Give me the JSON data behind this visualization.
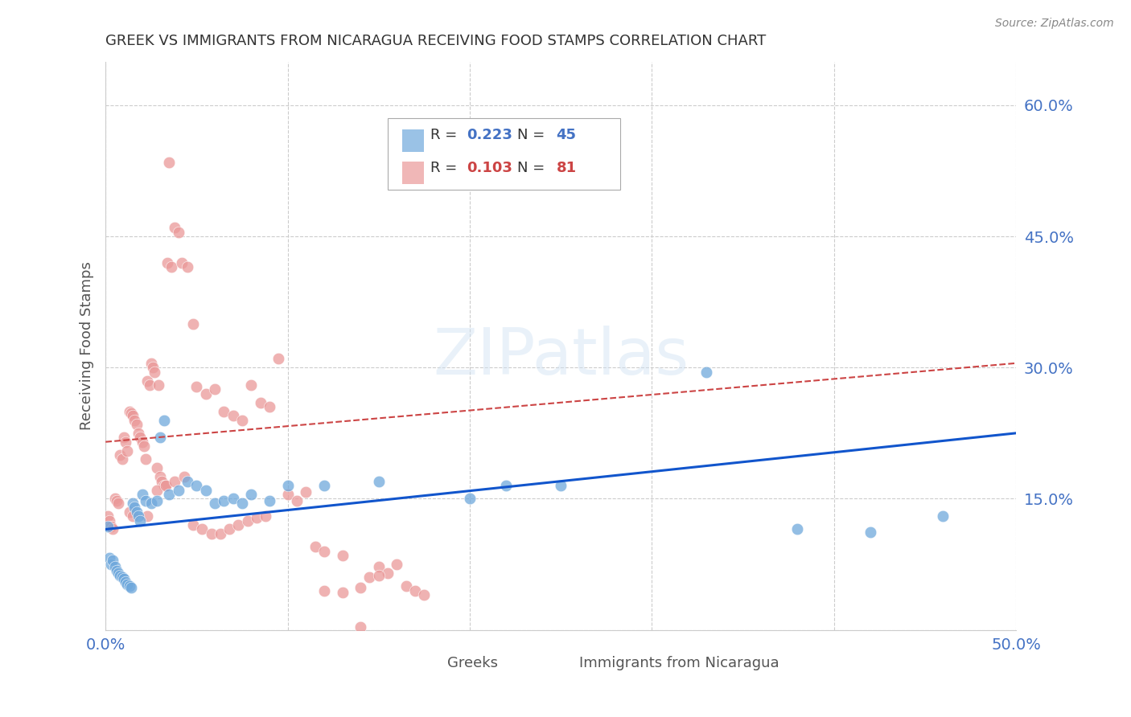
{
  "title": "GREEK VS IMMIGRANTS FROM NICARAGUA RECEIVING FOOD STAMPS CORRELATION CHART",
  "source": "Source: ZipAtlas.com",
  "ylabel": "Receiving Food Stamps",
  "xlim": [
    0.0,
    0.5
  ],
  "ylim": [
    0.0,
    0.65
  ],
  "yticks": [
    0.0,
    0.15,
    0.3,
    0.45,
    0.6
  ],
  "yticklabels": [
    "",
    "15.0%",
    "30.0%",
    "45.0%",
    "60.0%"
  ],
  "grid_color": "#cccccc",
  "background_color": "#ffffff",
  "title_color": "#333333",
  "axis_color": "#4472c4",
  "greek_color": "#6fa8dc",
  "nica_color": "#ea9999",
  "greek_line_color": "#1155cc",
  "nica_line_color": "#cc4444",
  "greek_line": [
    [
      0.0,
      0.115
    ],
    [
      0.5,
      0.225
    ]
  ],
  "nica_line": [
    [
      0.0,
      0.215
    ],
    [
      0.5,
      0.305
    ]
  ],
  "greek_scatter": [
    [
      0.001,
      0.118
    ],
    [
      0.002,
      0.082
    ],
    [
      0.003,
      0.075
    ],
    [
      0.004,
      0.08
    ],
    [
      0.005,
      0.072
    ],
    [
      0.006,
      0.068
    ],
    [
      0.007,
      0.065
    ],
    [
      0.008,
      0.062
    ],
    [
      0.009,
      0.06
    ],
    [
      0.01,
      0.058
    ],
    [
      0.011,
      0.055
    ],
    [
      0.012,
      0.052
    ],
    [
      0.013,
      0.05
    ],
    [
      0.014,
      0.048
    ],
    [
      0.015,
      0.145
    ],
    [
      0.016,
      0.14
    ],
    [
      0.017,
      0.135
    ],
    [
      0.018,
      0.13
    ],
    [
      0.019,
      0.125
    ],
    [
      0.02,
      0.155
    ],
    [
      0.022,
      0.148
    ],
    [
      0.025,
      0.145
    ],
    [
      0.028,
      0.148
    ],
    [
      0.03,
      0.22
    ],
    [
      0.032,
      0.24
    ],
    [
      0.035,
      0.155
    ],
    [
      0.04,
      0.16
    ],
    [
      0.045,
      0.17
    ],
    [
      0.05,
      0.165
    ],
    [
      0.055,
      0.16
    ],
    [
      0.06,
      0.145
    ],
    [
      0.065,
      0.148
    ],
    [
      0.07,
      0.15
    ],
    [
      0.075,
      0.145
    ],
    [
      0.08,
      0.155
    ],
    [
      0.09,
      0.148
    ],
    [
      0.1,
      0.165
    ],
    [
      0.12,
      0.165
    ],
    [
      0.15,
      0.17
    ],
    [
      0.2,
      0.15
    ],
    [
      0.22,
      0.165
    ],
    [
      0.25,
      0.165
    ],
    [
      0.33,
      0.295
    ],
    [
      0.38,
      0.115
    ],
    [
      0.42,
      0.112
    ],
    [
      0.46,
      0.13
    ]
  ],
  "nica_scatter": [
    [
      0.001,
      0.13
    ],
    [
      0.002,
      0.125
    ],
    [
      0.003,
      0.118
    ],
    [
      0.004,
      0.115
    ],
    [
      0.005,
      0.15
    ],
    [
      0.006,
      0.148
    ],
    [
      0.007,
      0.145
    ],
    [
      0.008,
      0.2
    ],
    [
      0.009,
      0.195
    ],
    [
      0.01,
      0.22
    ],
    [
      0.011,
      0.215
    ],
    [
      0.012,
      0.205
    ],
    [
      0.013,
      0.25
    ],
    [
      0.014,
      0.248
    ],
    [
      0.015,
      0.245
    ],
    [
      0.016,
      0.24
    ],
    [
      0.017,
      0.235
    ],
    [
      0.018,
      0.225
    ],
    [
      0.019,
      0.22
    ],
    [
      0.02,
      0.215
    ],
    [
      0.021,
      0.21
    ],
    [
      0.022,
      0.195
    ],
    [
      0.023,
      0.285
    ],
    [
      0.024,
      0.28
    ],
    [
      0.025,
      0.305
    ],
    [
      0.026,
      0.3
    ],
    [
      0.027,
      0.295
    ],
    [
      0.028,
      0.185
    ],
    [
      0.029,
      0.28
    ],
    [
      0.03,
      0.175
    ],
    [
      0.031,
      0.17
    ],
    [
      0.032,
      0.165
    ],
    [
      0.033,
      0.165
    ],
    [
      0.034,
      0.42
    ],
    [
      0.036,
      0.415
    ],
    [
      0.038,
      0.46
    ],
    [
      0.04,
      0.455
    ],
    [
      0.042,
      0.42
    ],
    [
      0.045,
      0.415
    ],
    [
      0.048,
      0.35
    ],
    [
      0.05,
      0.278
    ],
    [
      0.055,
      0.27
    ],
    [
      0.06,
      0.275
    ],
    [
      0.065,
      0.25
    ],
    [
      0.07,
      0.245
    ],
    [
      0.075,
      0.24
    ],
    [
      0.08,
      0.28
    ],
    [
      0.085,
      0.26
    ],
    [
      0.09,
      0.255
    ],
    [
      0.095,
      0.31
    ],
    [
      0.1,
      0.155
    ],
    [
      0.105,
      0.148
    ],
    [
      0.11,
      0.158
    ],
    [
      0.115,
      0.095
    ],
    [
      0.12,
      0.09
    ],
    [
      0.13,
      0.085
    ],
    [
      0.14,
      0.048
    ],
    [
      0.15,
      0.072
    ],
    [
      0.155,
      0.065
    ],
    [
      0.16,
      0.075
    ],
    [
      0.165,
      0.05
    ],
    [
      0.17,
      0.045
    ],
    [
      0.175,
      0.04
    ],
    [
      0.035,
      0.535
    ],
    [
      0.013,
      0.135
    ],
    [
      0.015,
      0.13
    ],
    [
      0.023,
      0.13
    ],
    [
      0.028,
      0.16
    ],
    [
      0.033,
      0.165
    ],
    [
      0.038,
      0.17
    ],
    [
      0.043,
      0.175
    ],
    [
      0.048,
      0.12
    ],
    [
      0.053,
      0.115
    ],
    [
      0.058,
      0.11
    ],
    [
      0.063,
      0.11
    ],
    [
      0.068,
      0.115
    ],
    [
      0.073,
      0.12
    ],
    [
      0.078,
      0.125
    ],
    [
      0.083,
      0.128
    ],
    [
      0.088,
      0.13
    ],
    [
      0.12,
      0.045
    ],
    [
      0.13,
      0.043
    ],
    [
      0.14,
      0.003
    ],
    [
      0.145,
      0.06
    ],
    [
      0.15,
      0.062
    ]
  ]
}
